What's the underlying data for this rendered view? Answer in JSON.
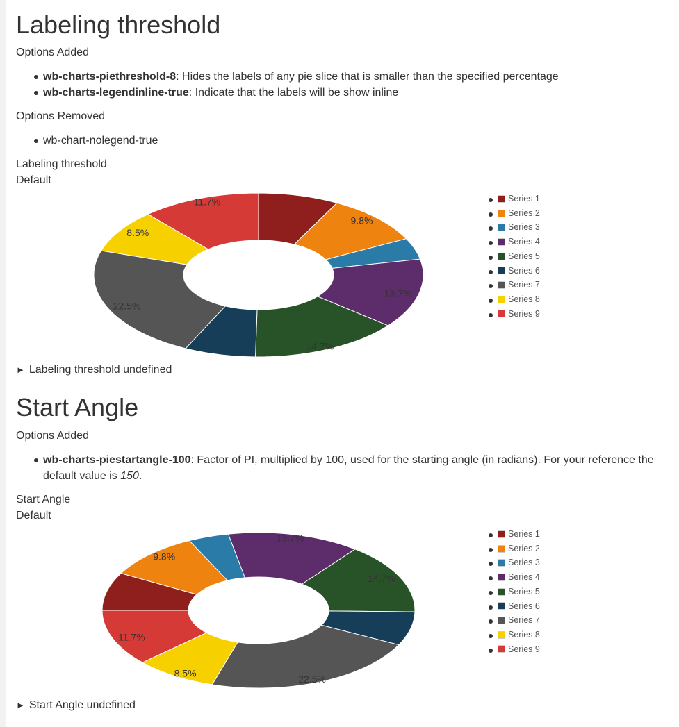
{
  "sections": [
    {
      "heading": "Labeling threshold",
      "added_label": "Options Added",
      "added": [
        {
          "code": "wb-charts-piethreshold-8",
          "text": ": Hides the labels of any pie slice that is smaller than the specified percentage"
        },
        {
          "code": "wb-charts-legendinline-true",
          "text": ": Indicate that the labels will be show inline"
        }
      ],
      "removed_label": "Options Removed",
      "removed": [
        "wb-chart-nolegend-true"
      ],
      "chart_title": "Labeling threshold",
      "chart_subtitle": "Default",
      "details_label": "Labeling threshold undefined"
    },
    {
      "heading": "Start Angle",
      "added_label": "Options Added",
      "added": [
        {
          "code": "wb-charts-piestartangle-100",
          "text": ": Factor of PI, multiplied by 100, used for the starting angle (in radians). For your reference the default value is ",
          "em": "150",
          "tail": "."
        }
      ],
      "chart_title": "Start Angle",
      "chart_subtitle": "Default",
      "details_label": "Start Angle undefined"
    }
  ],
  "chart_data": [
    {
      "type": "pie",
      "variant": "donut",
      "title": "Labeling threshold",
      "subtitle": "Default",
      "start_angle_deg": 0,
      "label_threshold_percent": 8,
      "series": [
        {
          "name": "Series 1",
          "percent": 7.9,
          "color": "#8e1f1d"
        },
        {
          "name": "Series 2",
          "percent": 9.8,
          "color": "#ee8310"
        },
        {
          "name": "Series 3",
          "percent": 4.2,
          "color": "#2b7ba8"
        },
        {
          "name": "Series 4",
          "percent": 13.7,
          "color": "#5c2d6a"
        },
        {
          "name": "Series 5",
          "percent": 14.7,
          "color": "#285328"
        },
        {
          "name": "Series 6",
          "percent": 7.0,
          "color": "#163e59"
        },
        {
          "name": "Series 7",
          "percent": 22.5,
          "color": "#555555"
        },
        {
          "name": "Series 8",
          "percent": 8.5,
          "color": "#f7d000"
        },
        {
          "name": "Series 9",
          "percent": 11.7,
          "color": "#d63a37"
        }
      ],
      "legend_position": "right"
    },
    {
      "type": "pie",
      "variant": "donut",
      "title": "Start Angle",
      "subtitle": "Default",
      "start_angle_deg": 270,
      "label_threshold_percent": 8,
      "series": [
        {
          "name": "Series 1",
          "percent": 7.9,
          "color": "#8e1f1d"
        },
        {
          "name": "Series 2",
          "percent": 9.8,
          "color": "#ee8310"
        },
        {
          "name": "Series 3",
          "percent": 4.2,
          "color": "#2b7ba8"
        },
        {
          "name": "Series 4",
          "percent": 13.7,
          "color": "#5c2d6a"
        },
        {
          "name": "Series 5",
          "percent": 14.7,
          "color": "#285328"
        },
        {
          "name": "Series 6",
          "percent": 7.0,
          "color": "#163e59"
        },
        {
          "name": "Series 7",
          "percent": 22.5,
          "color": "#555555"
        },
        {
          "name": "Series 8",
          "percent": 8.5,
          "color": "#f7d000"
        },
        {
          "name": "Series 9",
          "percent": 11.7,
          "color": "#d63a37"
        }
      ],
      "legend_position": "right"
    }
  ]
}
